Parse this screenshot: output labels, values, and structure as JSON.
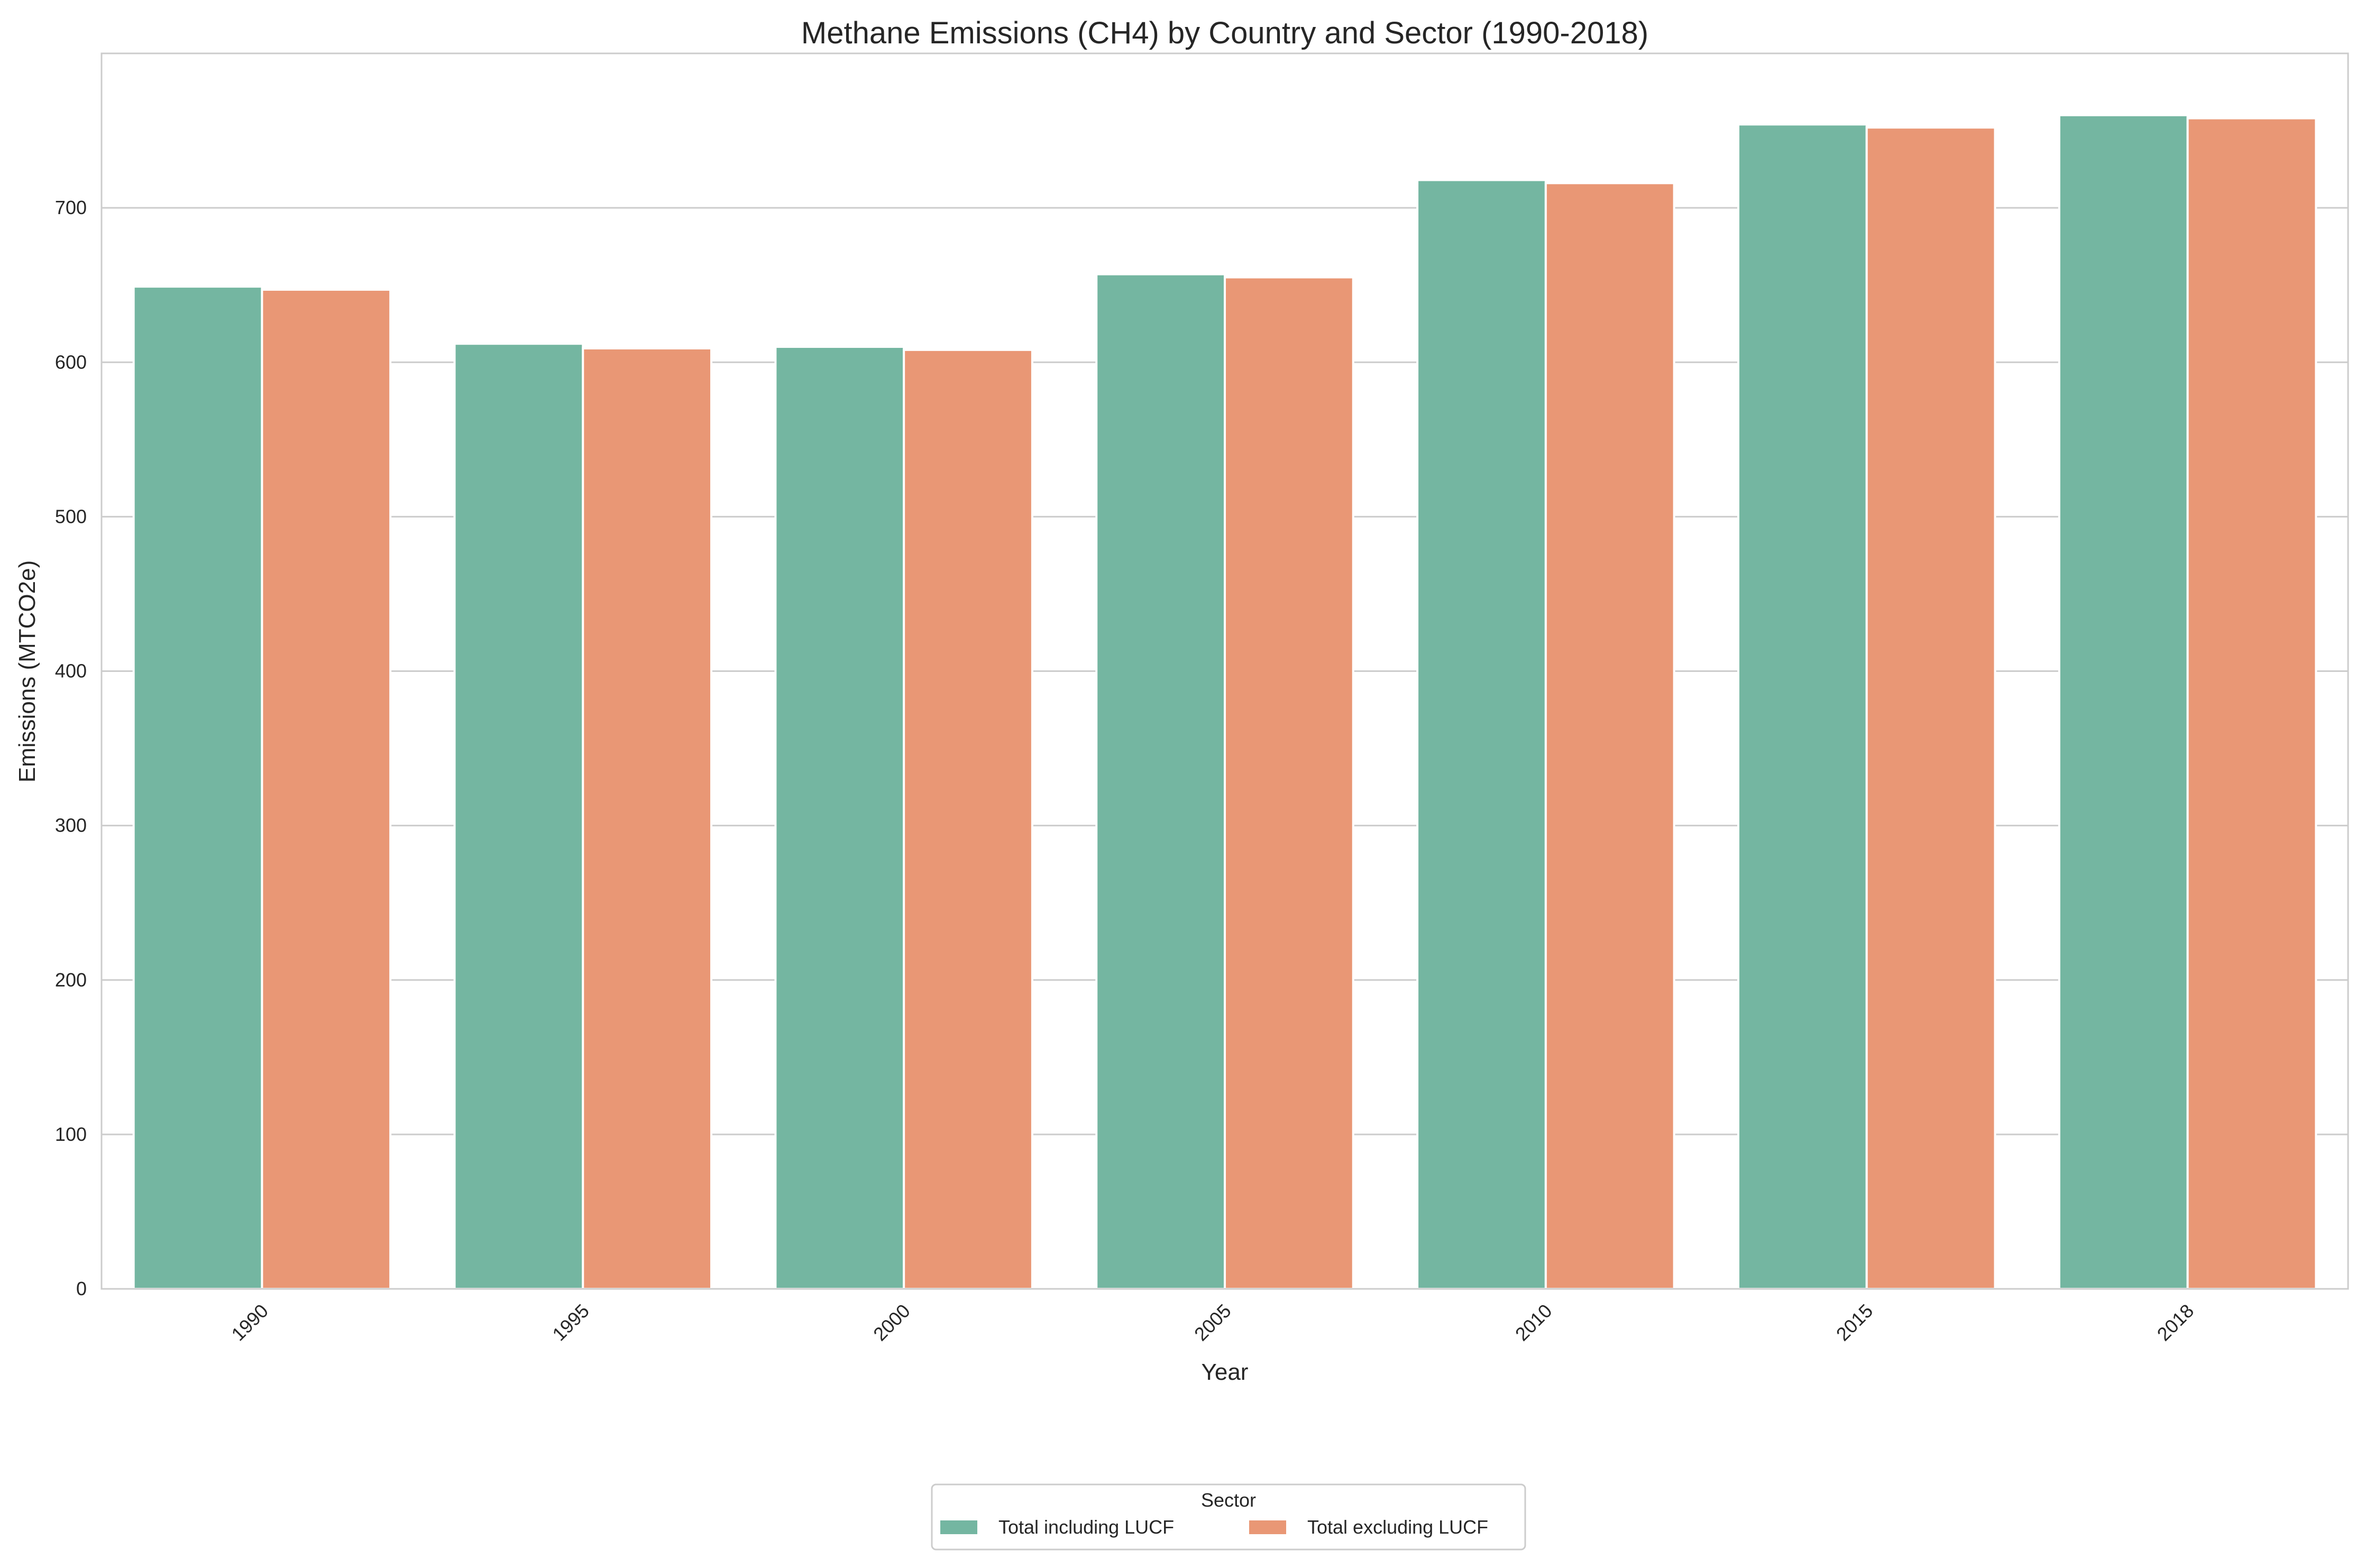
{
  "chart_data": {
    "type": "bar",
    "title": "Methane Emissions (CH4) by Country and Sector (1990-2018)",
    "xlabel": "Year",
    "ylabel": "Emissions (MTCO2e)",
    "categories": [
      "1990",
      "1995",
      "2000",
      "2005",
      "2010",
      "2015",
      "2018"
    ],
    "series": [
      {
        "name": "Total including LUCF",
        "color": "#74b6a1",
        "values": [
          649,
          612,
          610,
          657,
          718,
          754,
          760
        ]
      },
      {
        "name": "Total excluding LUCF",
        "color": "#e99775",
        "values": [
          647,
          609,
          608,
          655,
          716,
          752,
          758
        ]
      }
    ],
    "ylim": [
      0,
      800
    ],
    "yticks": [
      "0",
      "100",
      "200",
      "300",
      "400",
      "500",
      "600",
      "700"
    ],
    "grid": true,
    "legend": {
      "title": "Sector",
      "placement": "bottom-center"
    }
  }
}
